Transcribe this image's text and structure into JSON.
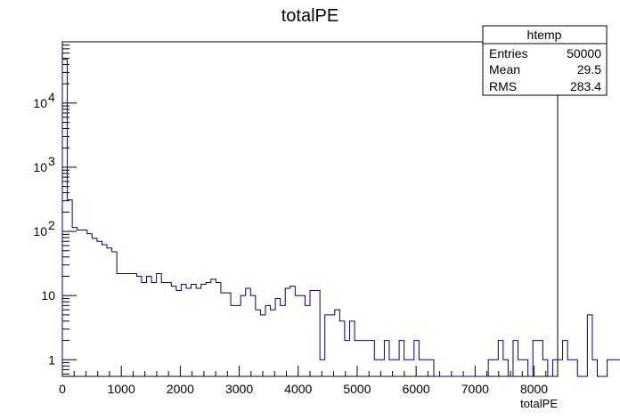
{
  "chart_data": {
    "type": "histogram",
    "title": "totalPE",
    "xlabel": "totalPE",
    "ylabel": "",
    "xlim": [
      0,
      8400
    ],
    "ylim": [
      0.55,
      90000
    ],
    "yscale": "log",
    "bin_width": 84,
    "line_color": "#000080",
    "x_ticks": [
      {
        "value": 0,
        "label": "0"
      },
      {
        "value": 1000,
        "label": "1000"
      },
      {
        "value": 2000,
        "label": "2000"
      },
      {
        "value": 3000,
        "label": "3000"
      },
      {
        "value": 4000,
        "label": "4000"
      },
      {
        "value": 5000,
        "label": "5000"
      },
      {
        "value": 6000,
        "label": "6000"
      },
      {
        "value": 7000,
        "label": "7000"
      },
      {
        "value": 8000,
        "label": "8000"
      }
    ],
    "y_ticks": [
      {
        "value": 1,
        "base": "1",
        "exp": ""
      },
      {
        "value": 10,
        "base": "10",
        "exp": ""
      },
      {
        "value": 100,
        "base": "10",
        "exp": "2"
      },
      {
        "value": 1000,
        "base": "10",
        "exp": "3"
      },
      {
        "value": 10000,
        "base": "10",
        "exp": "4"
      }
    ],
    "values": [
      48000,
      310,
      115,
      105,
      105,
      92,
      78,
      70,
      62,
      55,
      48,
      22,
      22,
      22,
      22,
      20,
      16,
      20,
      16,
      22,
      16,
      16,
      14,
      12,
      15,
      13,
      15,
      13,
      15,
      16,
      18,
      16,
      11,
      11,
      7,
      7,
      10,
      13,
      10,
      6,
      5,
      7,
      6,
      9,
      7,
      13,
      14,
      10,
      10,
      7,
      12,
      12,
      1,
      5,
      5,
      6,
      4,
      2,
      4,
      2,
      2,
      2,
      2,
      1,
      1,
      2,
      1,
      1,
      2,
      1,
      1,
      2,
      1,
      1,
      1,
      0,
      0,
      0,
      0,
      0,
      0,
      0,
      0,
      0,
      0,
      0,
      1,
      1,
      2,
      1,
      0,
      2,
      1,
      1,
      0,
      2,
      2,
      1,
      0,
      1,
      1,
      2,
      1,
      1,
      0,
      0,
      5,
      1,
      0,
      0,
      1,
      1,
      1,
      0,
      1,
      1,
      0,
      0,
      1,
      0
    ]
  },
  "stats_box": {
    "name": "htemp",
    "rows": [
      {
        "label": "Entries",
        "value": "50000"
      },
      {
        "label": "Mean",
        "value": "29.5"
      },
      {
        "label": "RMS",
        "value": "283.4"
      }
    ]
  }
}
